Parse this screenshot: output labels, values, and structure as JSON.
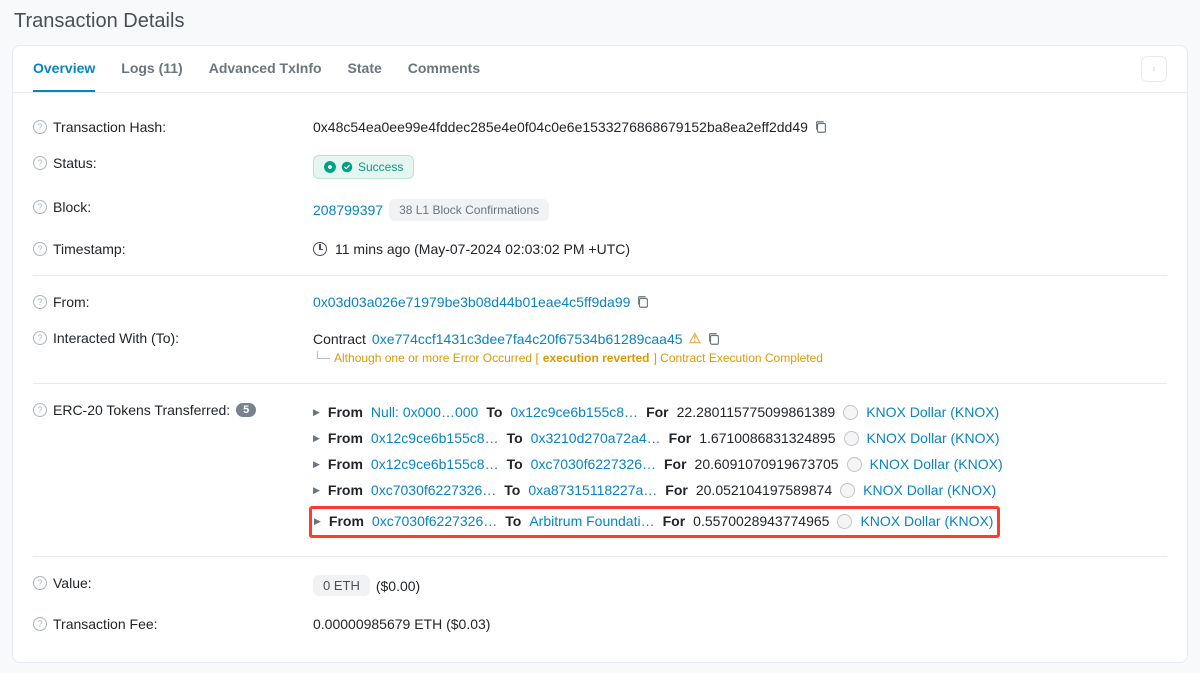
{
  "page_title": "Transaction Details",
  "tabs": {
    "overview": "Overview",
    "logs": "Logs (11)",
    "advanced": "Advanced TxInfo",
    "state": "State",
    "comments": "Comments"
  },
  "labels": {
    "tx_hash": "Transaction Hash:",
    "status": "Status:",
    "block": "Block:",
    "timestamp": "Timestamp:",
    "from": "From:",
    "to": "Interacted With (To):",
    "erc20": "ERC-20 Tokens Transferred:",
    "value": "Value:",
    "fee": "Transaction Fee:"
  },
  "tx_hash": "0x48c54ea0ee99e4fddec285e4e0f04c0e6e1533276868679152ba8ea2eff2dd49",
  "status": "Success",
  "block_number": "208799397",
  "block_confirmations": "38 L1 Block Confirmations",
  "timestamp": "11 mins ago (May-07-2024 02:03:02 PM +UTC)",
  "from_addr": "0x03d03a026e71979be3b08d44b01eae4c5ff9da99",
  "to_contract_label": "Contract",
  "to_addr": "0xe774ccf1431c3dee7fa4c20f67534b61289caa45",
  "to_warning_prefix": "Although one or more Error Occurred [",
  "to_warning_bold": "execution reverted",
  "to_warning_suffix": "] Contract Execution Completed",
  "erc20_count": "5",
  "transfers": [
    {
      "from": "Null: 0x000…000",
      "to": "0x12c9ce6b155c8…",
      "amount": "22.280115775099861389",
      "token": "KNOX Dollar (KNOX)",
      "highlight": false
    },
    {
      "from": "0x12c9ce6b155c8…",
      "to": "0x3210d270a72a4…",
      "amount": "1.6710086831324895",
      "token": "KNOX Dollar (KNOX)",
      "highlight": false
    },
    {
      "from": "0x12c9ce6b155c8…",
      "to": "0xc7030f6227326…",
      "amount": "20.6091070919673705",
      "token": "KNOX Dollar (KNOX)",
      "highlight": false
    },
    {
      "from": "0xc7030f6227326…",
      "to": "0xa87315118227a…",
      "amount": "20.052104197589874",
      "token": "KNOX Dollar (KNOX)",
      "highlight": false
    },
    {
      "from": "0xc7030f6227326…",
      "to": "Arbitrum Foundati…",
      "amount": "0.5570028943774965",
      "token": "KNOX Dollar (KNOX)",
      "highlight": true
    }
  ],
  "value_eth": "0 ETH",
  "value_usd": "($0.00)",
  "fee": "0.00000985679 ETH ($0.03)"
}
